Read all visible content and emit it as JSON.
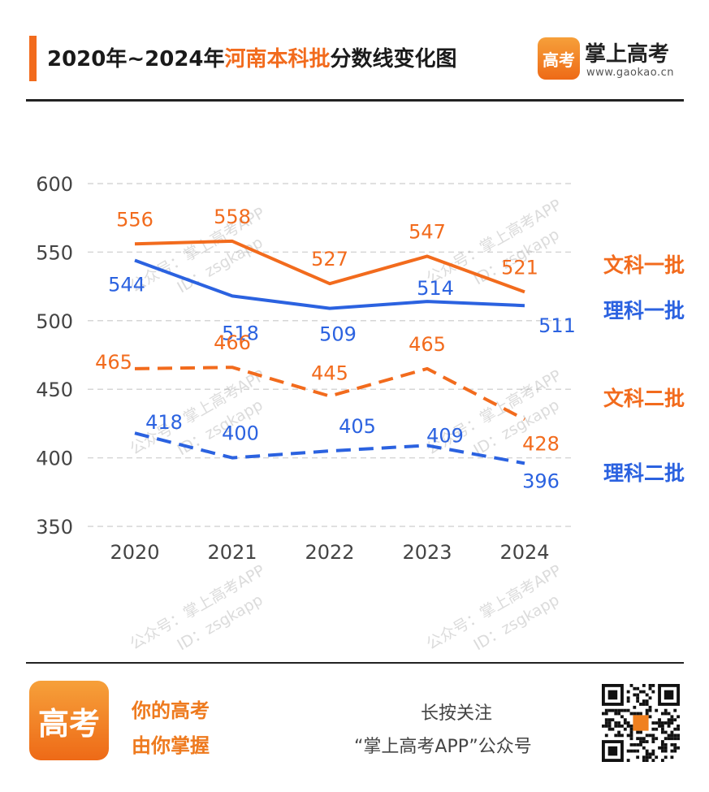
{
  "header": {
    "title_prefix": "2020年~2024年",
    "title_highlight": "河南本科批",
    "title_suffix": "分数线变化图",
    "brand_name": "掌上高考",
    "brand_url": "www.gaokao.cn",
    "brand_logo_text": "高考"
  },
  "watermark": {
    "line1": "公众号：掌上高考APP",
    "line2": "ID：zsgkapp"
  },
  "chart_data": {
    "type": "line",
    "title": "2020年~2024年河南本科批分数线变化图",
    "categories": [
      "2020",
      "2021",
      "2022",
      "2023",
      "2024"
    ],
    "ylim": [
      350,
      600
    ],
    "yticks": [
      600,
      550,
      500,
      450,
      400,
      350
    ],
    "grid": true,
    "legend_position": "right",
    "series": [
      {
        "name": "文科一批",
        "values": [
          556,
          558,
          527,
          547,
          521
        ],
        "color": "#F26B1D",
        "style": "solid"
      },
      {
        "name": "理科一批",
        "values": [
          544,
          518,
          509,
          514,
          511
        ],
        "color": "#2B62E0",
        "style": "solid"
      },
      {
        "name": "文科二批",
        "values": [
          465,
          466,
          445,
          465,
          428
        ],
        "color": "#F26B1D",
        "style": "dashed"
      },
      {
        "name": "理科二批",
        "values": [
          418,
          400,
          405,
          409,
          396
        ],
        "color": "#2B62E0",
        "style": "dashed"
      }
    ]
  },
  "footer": {
    "logo_text": "高考",
    "slogan_line1": "你的高考",
    "slogan_line2": "由你掌握",
    "follow_line1": "长按关注",
    "follow_line2": "“掌上高考APP”公众号"
  }
}
